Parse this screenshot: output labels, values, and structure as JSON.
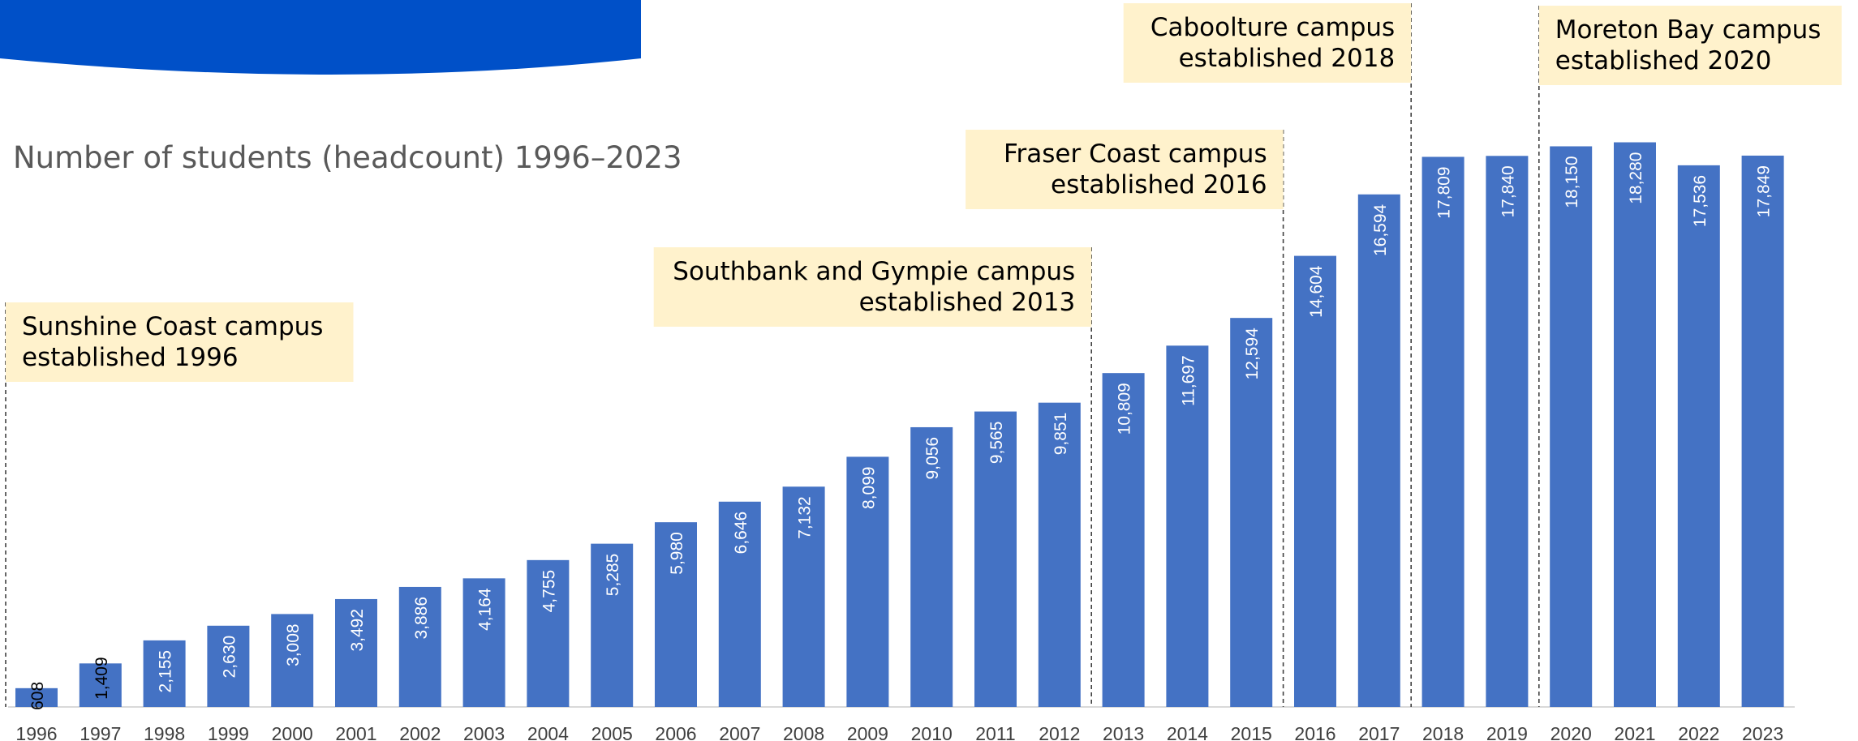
{
  "colors": {
    "bar": "#4472c4",
    "banner": "#0050c8",
    "annotation_bg": "#fff2cc",
    "axis": "#d9d9d9",
    "title": "#595959"
  },
  "chart_data": {
    "type": "bar",
    "title": "Number of students (headcount) 1996–2023",
    "xlabel": "",
    "ylabel": "",
    "ylim": [
      0,
      20000
    ],
    "grid": false,
    "categories": [
      "1996",
      "1997",
      "1998",
      "1999",
      "2000",
      "2001",
      "2002",
      "2003",
      "2004",
      "2005",
      "2006",
      "2007",
      "2008",
      "2009",
      "2010",
      "2011",
      "2012",
      "2013",
      "2014",
      "2015",
      "2016",
      "2017",
      "2018",
      "2019",
      "2020",
      "2021",
      "2022",
      "2023"
    ],
    "values": [
      608,
      1409,
      2155,
      2630,
      3008,
      3492,
      3886,
      4164,
      4755,
      5285,
      5980,
      6646,
      7132,
      8099,
      9056,
      9565,
      9851,
      10809,
      11697,
      12594,
      14604,
      16594,
      17809,
      17840,
      18150,
      18280,
      17536,
      17849
    ],
    "value_labels": [
      "608",
      "1,409",
      "2,155",
      "2,630",
      "3,008",
      "3,492",
      "3,886",
      "4,164",
      "4,755",
      "5,285",
      "5,980",
      "6,646",
      "7,132",
      "8,099",
      "9,056",
      "9,565",
      "9,851",
      "10,809",
      "11,697",
      "12,594",
      "14,604",
      "16,594",
      "17,809",
      "17,840",
      "18,150",
      "18,280",
      "17,536",
      "17,849"
    ],
    "annotations": [
      {
        "year": "1996",
        "lines": [
          "Sunshine Coast campus",
          "established 1996"
        ],
        "align": "left"
      },
      {
        "year": "2013",
        "lines": [
          "Southbank and Gympie campus",
          "established 2013"
        ],
        "align": "right"
      },
      {
        "year": "2016",
        "lines": [
          "Fraser Coast campus",
          "established 2016"
        ],
        "align": "right"
      },
      {
        "year": "2018",
        "lines": [
          "Caboolture campus",
          "established 2018"
        ],
        "align": "right"
      },
      {
        "year": "2020",
        "lines": [
          "Moreton Bay campus",
          "established 2020"
        ],
        "align": "left"
      }
    ]
  }
}
